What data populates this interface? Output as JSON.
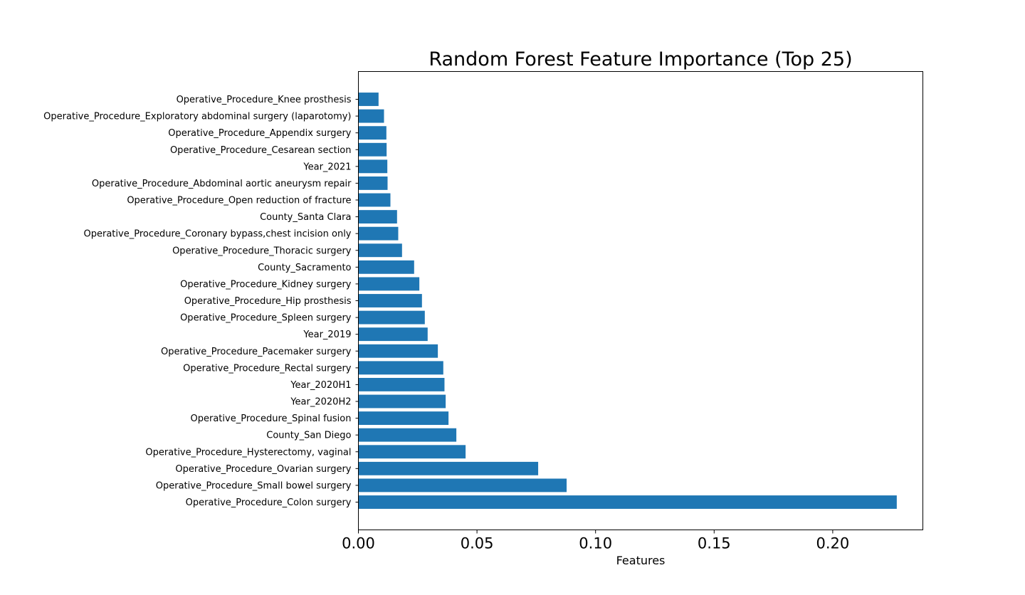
{
  "chart_data": {
    "type": "bar",
    "orientation": "horizontal",
    "title": "Random Forest Feature Importance (Top 25)",
    "xlabel": "Features",
    "ylabel": "",
    "xlim": [
      0,
      0.238
    ],
    "xticks": [
      "0.00",
      "0.05",
      "0.10",
      "0.15",
      "0.20"
    ],
    "xtick_values": [
      0,
      0.05,
      0.1,
      0.15,
      0.2
    ],
    "bar_color": "#1f77b4",
    "grid": false,
    "categories": [
      "Operative_Procedure_Colon surgery",
      "Operative_Procedure_Small bowel surgery",
      "Operative_Procedure_Ovarian surgery",
      "Operative_Procedure_Hysterectomy, vaginal",
      "County_San Diego",
      "Operative_Procedure_Spinal fusion",
      "Year_2020H2",
      "Year_2020H1",
      "Operative_Procedure_Rectal surgery",
      "Operative_Procedure_Pacemaker surgery",
      "Year_2019",
      "Operative_Procedure_Spleen surgery",
      "Operative_Procedure_Hip prosthesis",
      "Operative_Procedure_Kidney surgery",
      "County_Sacramento",
      "Operative_Procedure_Thoracic surgery",
      "Operative_Procedure_Coronary bypass,chest incision only",
      "County_Santa Clara",
      "Operative_Procedure_Open reduction of fracture",
      "Operative_Procedure_Abdominal aortic aneurysm repair",
      "Year_2021",
      "Operative_Procedure_Cesarean section",
      "Operative_Procedure_Appendix surgery",
      "Operative_Procedure_Exploratory abdominal surgery (laparotomy)",
      "Operative_Procedure_Knee prosthesis"
    ],
    "values": [
      0.227,
      0.0878,
      0.0758,
      0.0452,
      0.0413,
      0.038,
      0.0368,
      0.0363,
      0.0358,
      0.0335,
      0.0292,
      0.028,
      0.0268,
      0.0257,
      0.0235,
      0.0184,
      0.0168,
      0.0163,
      0.0135,
      0.0123,
      0.0122,
      0.0119,
      0.0118,
      0.0108,
      0.0085
    ]
  }
}
